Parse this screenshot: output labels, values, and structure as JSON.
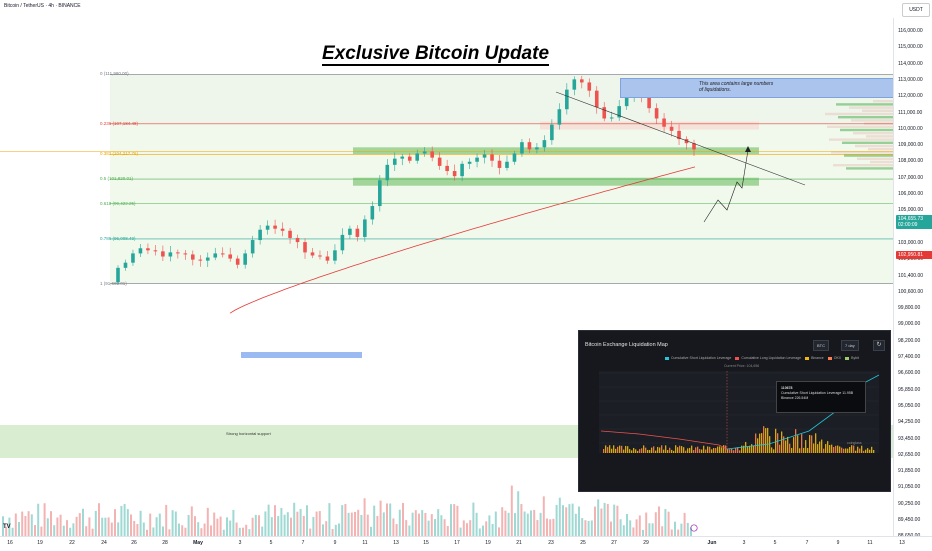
{
  "header": {
    "pair_title": "Bitcoin / TetherUS · 4h · BINANCE",
    "headline": "Exclusive Bitcoin Update",
    "currency": "USDT"
  },
  "annotations": {
    "liquidation_note": "This area contains large numbers\nof liquidations.",
    "support_note": "Strong horizontal support"
  },
  "chart_data": {
    "type": "candlestick",
    "symbol": "BTC/USDT",
    "timeframe": "4h",
    "ylim": [
      88600,
      117000
    ],
    "y_ticks": [
      "116,000.00",
      "115,000.00",
      "114,000.00",
      "113,000.00",
      "112,000.00",
      "111,000.00",
      "110,000.00",
      "109,000.00",
      "108,000.00",
      "107,000.00",
      "106,000.00",
      "105,000.00",
      "104,000.00",
      "103,000.00",
      "102,200.00",
      "101,400.00",
      "100,600.00",
      "99,800.00",
      "99,000.00",
      "98,200.00",
      "97,400.00",
      "96,600.00",
      "95,850.00",
      "95,050.00",
      "94,250.00",
      "93,450.00",
      "92,650.00",
      "91,850.00",
      "91,050.00",
      "90,250.00",
      "89,450.00",
      "88,650.00"
    ],
    "x_ticks": [
      "16",
      "19",
      "22",
      "24",
      "26",
      "28",
      "May",
      "3",
      "5",
      "7",
      "9",
      "11",
      "13",
      "15",
      "17",
      "19",
      "21",
      "23",
      "25",
      "27",
      "29",
      "Jun",
      "3",
      "5",
      "7",
      "9",
      "11",
      "13"
    ],
    "current_price": "104,655.73",
    "countdown": "02:00:09",
    "ma_price": "102,950.81",
    "fib_levels": [
      {
        "label": "0 (111,980.00)",
        "price": 111980,
        "color": "#787b86"
      },
      {
        "label": "0.236 (107,184.48)",
        "price": 107184,
        "color": "#e0463e"
      },
      {
        "label": "0.382 (104,217.76)",
        "price": 104218,
        "color": "#f0a500"
      },
      {
        "label": "0.5 (101,820.01)",
        "price": 101820,
        "color": "#4caf50"
      },
      {
        "label": "0.618 (99,422.25)",
        "price": 99422,
        "color": "#4caf50"
      },
      {
        "label": "0.786 (96,008.49)",
        "price": 96008,
        "color": "#26a69a"
      },
      {
        "label": "1 (91,660.01)",
        "price": 91660,
        "color": "#787b86"
      }
    ],
    "candles_approx_close": [
      93200,
      93700,
      94600,
      95100,
      94900,
      94800,
      94300,
      94700,
      94600,
      94500,
      94000,
      93900,
      94200,
      94600,
      94500,
      94100,
      93500,
      94600,
      95900,
      96900,
      97300,
      97000,
      96800,
      96100,
      95700,
      94700,
      94400,
      94300,
      93900,
      94900,
      96400,
      97000,
      96200,
      97900,
      99200,
      101700,
      103200,
      103800,
      104000,
      103600,
      104300,
      104500,
      103900,
      103100,
      102600,
      102100,
      103300,
      103500,
      103900,
      104200,
      103600,
      102900,
      103500,
      104300,
      105400,
      104700,
      104900,
      105600,
      107100,
      108600,
      110500,
      111500,
      111200,
      110400,
      108800,
      107700,
      107800,
      108900,
      109700,
      109900,
      109700,
      108700,
      107700,
      106900,
      106500,
      105700,
      105300,
      104700
    ]
  },
  "inset": {
    "title": "Bitcoin Exchange Liquidation Map",
    "select_exchange": "BTC",
    "select_range": "7 day",
    "legend": [
      {
        "label": "Cumulative Short Liquidation Leverage",
        "color": "#26c6da"
      },
      {
        "label": "Cumulative Long Liquidation Leverage",
        "color": "#ef5350"
      },
      {
        "label": "Binance",
        "color": "#f0b90b"
      },
      {
        "label": "OKX",
        "color": "#ff7f50"
      },
      {
        "label": "Bybit",
        "color": "#9ccc65"
      }
    ],
    "current_price_label": "Current Price: 104,656",
    "tooltip": {
      "title": "110678",
      "row1": "Cumulative Short Liquidation Leverage    11.95B",
      "row2": "Binance    226.54M"
    },
    "watermark": "coinglass"
  }
}
